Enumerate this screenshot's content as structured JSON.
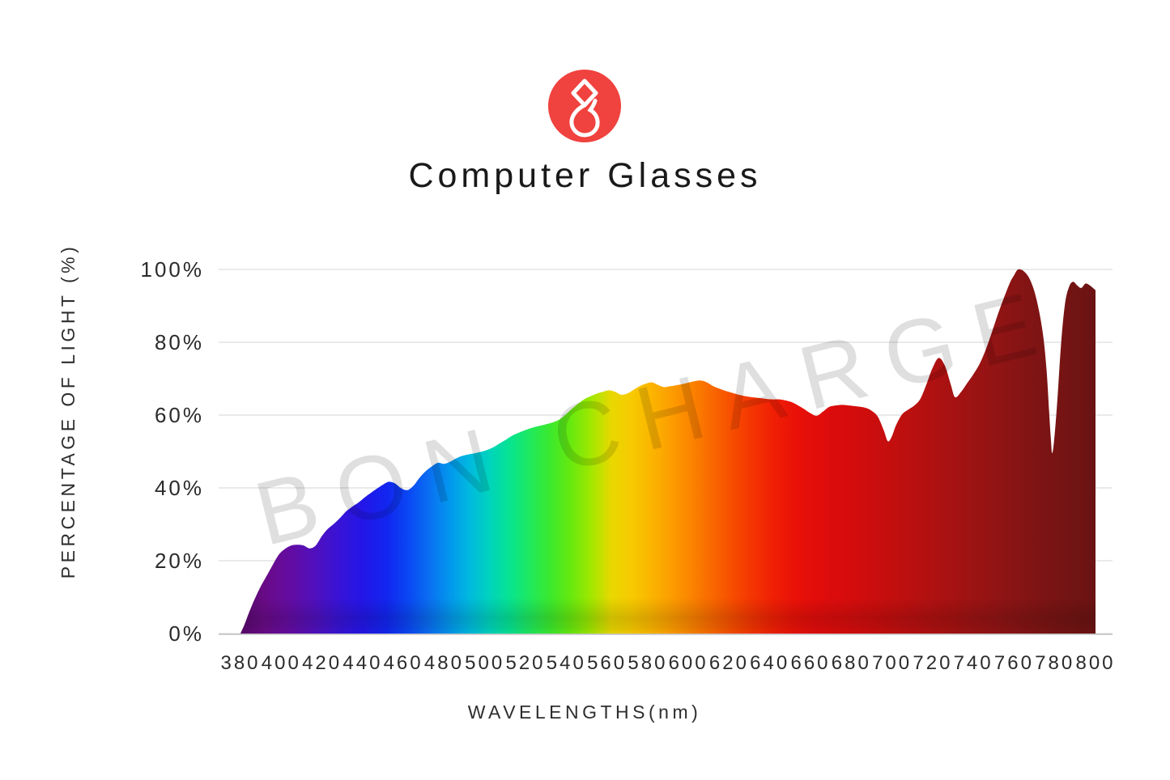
{
  "header": {
    "title": "Computer Glasses",
    "logo_color": "#F0423E"
  },
  "watermark": {
    "text": "BON CHARGE"
  },
  "chart_data": {
    "type": "area",
    "title": "Computer Glasses",
    "xlabel": "WAVELENGTHS(nm)",
    "ylabel": "PERCENTAGE OF LIGHT (%)",
    "xlim": [
      380,
      800
    ],
    "ylim": [
      0,
      100
    ],
    "grid": "horizontal",
    "legend": "none",
    "x_ticks": [
      380,
      400,
      420,
      440,
      460,
      480,
      500,
      520,
      540,
      560,
      580,
      600,
      620,
      640,
      660,
      680,
      700,
      720,
      740,
      760,
      780,
      800
    ],
    "y_ticks": [
      {
        "value": 0,
        "label": "0%"
      },
      {
        "value": 20,
        "label": "20%"
      },
      {
        "value": 40,
        "label": "40%"
      },
      {
        "value": 60,
        "label": "60%"
      },
      {
        "value": 80,
        "label": "80%"
      },
      {
        "value": 100,
        "label": "100%"
      }
    ],
    "series": [
      {
        "name": "light-transmission-percent",
        "points": [
          [
            380,
            0
          ],
          [
            382,
            2.5
          ],
          [
            384,
            5.5
          ],
          [
            387,
            9.5
          ],
          [
            390,
            13
          ],
          [
            393,
            16
          ],
          [
            396,
            19
          ],
          [
            399,
            21.8
          ],
          [
            402,
            23.3
          ],
          [
            405,
            24.2
          ],
          [
            408,
            24.4
          ],
          [
            411,
            24.2
          ],
          [
            414,
            23.4
          ],
          [
            417,
            24.2
          ],
          [
            420,
            26.8
          ],
          [
            423,
            28.8
          ],
          [
            426,
            30.2
          ],
          [
            429,
            31.8
          ],
          [
            432,
            33.6
          ],
          [
            435,
            34.9
          ],
          [
            438,
            36
          ],
          [
            441,
            37.4
          ],
          [
            444,
            38.6
          ],
          [
            447,
            39.8
          ],
          [
            450,
            40.9
          ],
          [
            453,
            41.7
          ],
          [
            456,
            41.2
          ],
          [
            459,
            39.9
          ],
          [
            462,
            39.4
          ],
          [
            465,
            40.6
          ],
          [
            468,
            42.8
          ],
          [
            471,
            44.6
          ],
          [
            474,
            45.9
          ],
          [
            477,
            46.9
          ],
          [
            480,
            46.6
          ],
          [
            483,
            47.2
          ],
          [
            486,
            48.1
          ],
          [
            489,
            48.8
          ],
          [
            492,
            49.2
          ],
          [
            495,
            49.5
          ],
          [
            498,
            49.9
          ],
          [
            501,
            50.4
          ],
          [
            504,
            51.1
          ],
          [
            507,
            52.1
          ],
          [
            510,
            53.1
          ],
          [
            513,
            54.2
          ],
          [
            516,
            55
          ],
          [
            519,
            55.7
          ],
          [
            522,
            56.3
          ],
          [
            525,
            56.8
          ],
          [
            528,
            57.2
          ],
          [
            531,
            57.6
          ],
          [
            534,
            58.1
          ],
          [
            537,
            58.9
          ],
          [
            540,
            60.3
          ],
          [
            543,
            61.8
          ],
          [
            546,
            63.2
          ],
          [
            549,
            64.4
          ],
          [
            552,
            65.2
          ],
          [
            555,
            65.9
          ],
          [
            558,
            66.4
          ],
          [
            561,
            66.8
          ],
          [
            564,
            66.4
          ],
          [
            567,
            65.6
          ],
          [
            570,
            65.9
          ],
          [
            573,
            66.9
          ],
          [
            576,
            67.9
          ],
          [
            579,
            68.6
          ],
          [
            582,
            69
          ],
          [
            585,
            68.3
          ],
          [
            588,
            67.7
          ],
          [
            591,
            67.9
          ],
          [
            594,
            68.2
          ],
          [
            597,
            68.5
          ],
          [
            600,
            68.9
          ],
          [
            603,
            69.3
          ],
          [
            606,
            69.5
          ],
          [
            609,
            69
          ],
          [
            612,
            68
          ],
          [
            615,
            67.3
          ],
          [
            618,
            66.7
          ],
          [
            621,
            66.2
          ],
          [
            624,
            65.7
          ],
          [
            627,
            65.3
          ],
          [
            630,
            65
          ],
          [
            633,
            64.8
          ],
          [
            636,
            64.6
          ],
          [
            639,
            64.4
          ],
          [
            642,
            64.3
          ],
          [
            645,
            64.3
          ],
          [
            648,
            64
          ],
          [
            651,
            63.5
          ],
          [
            654,
            62.6
          ],
          [
            657,
            61.6
          ],
          [
            660,
            60.5
          ],
          [
            663,
            59.8
          ],
          [
            666,
            60.9
          ],
          [
            669,
            62.2
          ],
          [
            672,
            62.6
          ],
          [
            675,
            62.8
          ],
          [
            678,
            62.7
          ],
          [
            681,
            62.5
          ],
          [
            684,
            62.3
          ],
          [
            687,
            62
          ],
          [
            690,
            61.2
          ],
          [
            693,
            59.6
          ],
          [
            696,
            55.8
          ],
          [
            698,
            52.8
          ],
          [
            700,
            54.2
          ],
          [
            702,
            57.2
          ],
          [
            705,
            60.2
          ],
          [
            708,
            61.5
          ],
          [
            711,
            62.6
          ],
          [
            714,
            64.5
          ],
          [
            717,
            68.5
          ],
          [
            720,
            73
          ],
          [
            723,
            75.7
          ],
          [
            726,
            73.6
          ],
          [
            729,
            68.2
          ],
          [
            731,
            64.9
          ],
          [
            734,
            66.4
          ],
          [
            737,
            68.8
          ],
          [
            740,
            71.2
          ],
          [
            743,
            74
          ],
          [
            746,
            77.8
          ],
          [
            749,
            82.6
          ],
          [
            752,
            87.6
          ],
          [
            755,
            92.2
          ],
          [
            758,
            96.4
          ],
          [
            760,
            98.4
          ],
          [
            762,
            100
          ],
          [
            765,
            99.4
          ],
          [
            768,
            97
          ],
          [
            771,
            91.8
          ],
          [
            774,
            83
          ],
          [
            776,
            72
          ],
          [
            778,
            54
          ],
          [
            779,
            50
          ],
          [
            781,
            62
          ],
          [
            783,
            79
          ],
          [
            785,
            90.5
          ],
          [
            787,
            95.2
          ],
          [
            789,
            96.6
          ],
          [
            791,
            95.6
          ],
          [
            793,
            94.9
          ],
          [
            795,
            96.1
          ],
          [
            797,
            95.7
          ],
          [
            800,
            94.3
          ]
        ]
      }
    ],
    "spectrum_gradient": [
      [
        380,
        "#57096B"
      ],
      [
        392,
        "#690B87"
      ],
      [
        404,
        "#640CA2"
      ],
      [
        416,
        "#5110BC"
      ],
      [
        428,
        "#3913D6"
      ],
      [
        440,
        "#2316E8"
      ],
      [
        452,
        "#1226F0"
      ],
      [
        462,
        "#0A46F4"
      ],
      [
        472,
        "#0A6CF2"
      ],
      [
        482,
        "#0394EE"
      ],
      [
        492,
        "#00B8E0"
      ],
      [
        502,
        "#00D3BE"
      ],
      [
        512,
        "#06E393"
      ],
      [
        522,
        "#1FE95E"
      ],
      [
        532,
        "#3BE92E"
      ],
      [
        542,
        "#66E90F"
      ],
      [
        552,
        "#9FE800"
      ],
      [
        562,
        "#E8D800"
      ],
      [
        572,
        "#F7CA00"
      ],
      [
        582,
        "#FBB400"
      ],
      [
        592,
        "#FD9C00"
      ],
      [
        602,
        "#FB8200"
      ],
      [
        612,
        "#F96700"
      ],
      [
        622,
        "#F74C00"
      ],
      [
        632,
        "#F43302"
      ],
      [
        642,
        "#F01F05"
      ],
      [
        652,
        "#EA1208"
      ],
      [
        662,
        "#E20D0B"
      ],
      [
        675,
        "#D90C0C"
      ],
      [
        690,
        "#CC0D0D"
      ],
      [
        705,
        "#BE0F0F"
      ],
      [
        722,
        "#AE1111"
      ],
      [
        740,
        "#9C1313"
      ],
      [
        758,
        "#8B1414"
      ],
      [
        776,
        "#7B1414"
      ],
      [
        800,
        "#6B1313"
      ]
    ]
  }
}
